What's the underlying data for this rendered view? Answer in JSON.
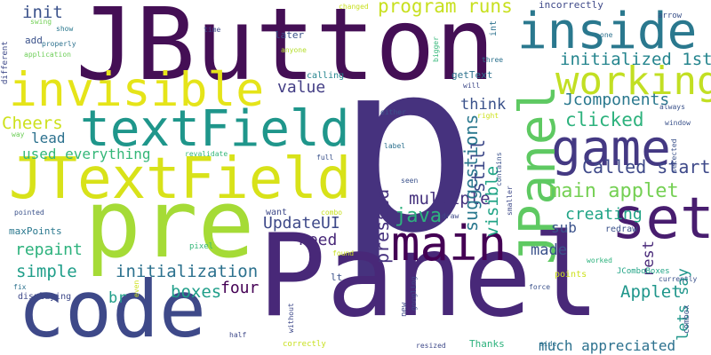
{
  "words": [
    {
      "text": "p",
      "color": "#46327e"
    },
    {
      "text": "Panel",
      "color": "#482878"
    },
    {
      "text": "JButton",
      "color": "#440f55"
    },
    {
      "text": "pre",
      "color": "#a5db36"
    },
    {
      "text": "code",
      "color": "#3e4989"
    },
    {
      "text": "JTextField",
      "color": "#d8e219"
    },
    {
      "text": "textField",
      "color": "#1f968b"
    },
    {
      "text": "invisible",
      "color": "#e5e419"
    },
    {
      "text": "inside",
      "color": "#2a788e"
    },
    {
      "text": "game",
      "color": "#443983"
    },
    {
      "text": "main",
      "color": "#440154"
    },
    {
      "text": "set",
      "color": "#481d6f"
    },
    {
      "text": "JPanel",
      "color": "#5ec962"
    },
    {
      "text": "working",
      "color": "#c2df23"
    },
    {
      "text": "main applet",
      "color": "#75d054"
    },
    {
      "text": "Called start",
      "color": "#3e4989"
    },
    {
      "text": "clicked",
      "color": "#2db27d"
    },
    {
      "text": "Jcomponents",
      "color": "#2a788e"
    },
    {
      "text": "initialized 1st",
      "color": "#25858e"
    },
    {
      "text": "program runs",
      "color": "#c8e020"
    },
    {
      "text": "init",
      "color": "#3b528b"
    },
    {
      "text": "Cheers",
      "color": "#cde11d"
    },
    {
      "text": "lead",
      "color": "#2c718e"
    },
    {
      "text": "used everything",
      "color": "#35b779"
    },
    {
      "text": "value",
      "color": "#433e85"
    },
    {
      "text": "think",
      "color": "#3b528b"
    },
    {
      "text": "UpdateUI",
      "color": "#3e4989"
    },
    {
      "text": "java",
      "color": "#2db27d"
    },
    {
      "text": "multiple",
      "color": "#46327e"
    },
    {
      "text": "pressed",
      "color": "#46327e"
    },
    {
      "text": "suggestions",
      "color": "#2a788e"
    },
    {
      "text": "still",
      "color": "#3e4989"
    },
    {
      "text": "visible",
      "color": "#20a486"
    },
    {
      "text": "creating",
      "color": "#20a486"
    },
    {
      "text": "need",
      "color": "#482878"
    },
    {
      "text": "repaint",
      "color": "#2db27d"
    },
    {
      "text": "simple",
      "color": "#1f9e89"
    },
    {
      "text": "initialization",
      "color": "#2c718e"
    },
    {
      "text": "boxes",
      "color": "#1f9e89"
    },
    {
      "text": "four",
      "color": "#440154"
    },
    {
      "text": "br",
      "color": "#1f9e89"
    },
    {
      "text": "made",
      "color": "#3b528b"
    },
    {
      "text": "sub",
      "color": "#3b528b"
    },
    {
      "text": "Applet",
      "color": "#1f968b"
    },
    {
      "text": "rest",
      "color": "#482878"
    },
    {
      "text": "lets say",
      "color": "#1f968b"
    },
    {
      "text": "much appreciated",
      "color": "#2c718e"
    },
    {
      "text": "Thanks",
      "color": "#2db27d"
    },
    {
      "text": "maxPoints",
      "color": "#2a788e"
    },
    {
      "text": "later",
      "color": "#3b528b"
    },
    {
      "text": "calling",
      "color": "#25858e"
    },
    {
      "text": "getText",
      "color": "#2c718e"
    },
    {
      "text": "incorrectly",
      "color": "#3e4989"
    },
    {
      "text": "show",
      "color": "#2a788e"
    },
    {
      "text": "swing",
      "color": "#73d056"
    },
    {
      "text": "add",
      "color": "#3b528b"
    },
    {
      "text": "properly",
      "color": "#2c718e"
    },
    {
      "text": "application",
      "color": "#6ece58"
    },
    {
      "text": "different",
      "color": "#3e4989"
    },
    {
      "text": "time",
      "color": "#3e4989"
    },
    {
      "text": "anyone",
      "color": "#b5de2b"
    },
    {
      "text": "changed",
      "color": "#c8e020"
    },
    {
      "text": "int",
      "color": "#2c718e"
    },
    {
      "text": "bigger",
      "color": "#35b779"
    },
    {
      "text": "will",
      "color": "#3e4989"
    },
    {
      "text": "three",
      "color": "#2c718e"
    },
    {
      "text": "one",
      "color": "#2c718e"
    },
    {
      "text": "arrow",
      "color": "#3b528b"
    },
    {
      "text": "always",
      "color": "#3b528b"
    },
    {
      "text": "right",
      "color": "#cde11d"
    },
    {
      "text": "either",
      "color": "#3b528b"
    },
    {
      "text": "window",
      "color": "#3b528b"
    },
    {
      "text": "selected",
      "color": "#3b528b"
    },
    {
      "text": "way",
      "color": "#6ece58"
    },
    {
      "text": "revalidate",
      "color": "#35b779"
    },
    {
      "text": "full",
      "color": "#3b528b"
    },
    {
      "text": "label",
      "color": "#2c718e"
    },
    {
      "text": "contains",
      "color": "#3b528b"
    },
    {
      "text": "seen",
      "color": "#3b528b"
    },
    {
      "text": "smaller",
      "color": "#3e4989"
    },
    {
      "text": "draw",
      "color": "#3e4989"
    },
    {
      "text": "combo",
      "color": "#c8e020"
    },
    {
      "text": "want",
      "color": "#3e4989"
    },
    {
      "text": "pointed",
      "color": "#3b528b"
    },
    {
      "text": "redraw",
      "color": "#3b528b"
    },
    {
      "text": "pixel",
      "color": "#35b779"
    },
    {
      "text": "found",
      "color": "#c8e020"
    },
    {
      "text": "points",
      "color": "#cde11d"
    },
    {
      "text": "worked",
      "color": "#2db27d"
    },
    {
      "text": "JComboBoxes",
      "color": "#20a486"
    },
    {
      "text": "currently",
      "color": "#3b528b"
    },
    {
      "text": "combox",
      "color": "#3b528b"
    },
    {
      "text": "fix",
      "color": "#2c718e"
    },
    {
      "text": "displaying",
      "color": "#3e4989"
    },
    {
      "text": "even",
      "color": "#cde11d"
    },
    {
      "text": "lt",
      "color": "#3b528b"
    },
    {
      "text": "without",
      "color": "#3e4989"
    },
    {
      "text": "googling",
      "color": "#3e4989"
    },
    {
      "text": "new",
      "color": "#3e4989"
    },
    {
      "text": "force",
      "color": "#3b528b"
    },
    {
      "text": "half",
      "color": "#3e4989"
    },
    {
      "text": "correctly",
      "color": "#c8e020"
    },
    {
      "text": "resized",
      "color": "#3e4989"
    },
    {
      "text": "side",
      "color": "#2c718e"
    }
  ]
}
